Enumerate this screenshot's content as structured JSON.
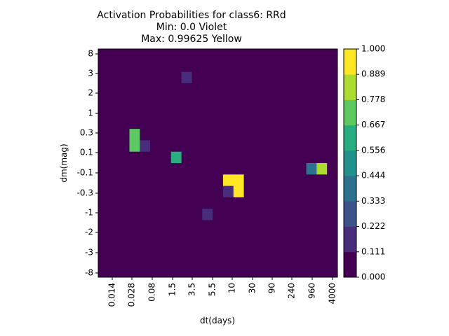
{
  "chart_data": {
    "type": "heatmap",
    "title_lines": [
      "Activation Probabilities for class6: RRd",
      "Min: 0.0 Violet",
      "Max: 0.99625 Yellow"
    ],
    "xlabel": "dt(days)",
    "ylabel": "dm(mag)",
    "x_tick_labels": [
      "0.014",
      "0.028",
      "0.08",
      "1.5",
      "3.5",
      "5.5",
      "10",
      "30",
      "90",
      "240",
      "960",
      "4000"
    ],
    "y_tick_labels": [
      "8",
      "3",
      "2",
      "1",
      "0.3",
      "0.1",
      "-0.1",
      "-0.3",
      "-1",
      "-2",
      "-3",
      "-8"
    ],
    "colorbar_ticks": [
      "1.000",
      "0.889",
      "0.778",
      "0.667",
      "0.556",
      "0.444",
      "0.333",
      "0.222",
      "0.111",
      "0.000"
    ],
    "colorbar_levels": 9,
    "vmin": 0.0,
    "vmax": 1.0,
    "colormap": [
      "#440154",
      "#472d7b",
      "#3b528b",
      "#2c728e",
      "#21918c",
      "#28ae80",
      "#5ec962",
      "#addc30",
      "#fde725"
    ],
    "grid": false,
    "values": [
      [
        0.0,
        0.0,
        0.0,
        0.0,
        0.05,
        0.05,
        0.0,
        0.0,
        0.0,
        0.0,
        0.0,
        0.01,
        0.0,
        0.0,
        0.0,
        0.0,
        0.0,
        0.0,
        0.0,
        0.0,
        0.0,
        0.0,
        0.0
      ],
      [
        0.0,
        0.04,
        0.0,
        0.0,
        0.07,
        0.07,
        0.0,
        0.0,
        0.0,
        0.0,
        0.0,
        0.0,
        0.0,
        0.0,
        0.0,
        0.0,
        0.0,
        0.0,
        0.0,
        0.0,
        0.01,
        0.0,
        0.02
      ],
      [
        0.0,
        0.0,
        0.0,
        0.0,
        0.0,
        0.0,
        0.0,
        0.0,
        0.15,
        0.0,
        0.0,
        0.0,
        0.0,
        0.0,
        0.0,
        0.0,
        0.0,
        0.0,
        0.0,
        0.0,
        0.0,
        0.0,
        0.0
      ],
      [
        0.0,
        0.0,
        0.0,
        0.0,
        0.0,
        0.0,
        0.0,
        0.0,
        0.0,
        0.0,
        0.0,
        0.0,
        0.0,
        0.0,
        0.0,
        0.0,
        0.0,
        0.0,
        0.0,
        0.0,
        0.0,
        0.0,
        0.0
      ],
      [
        0.0,
        0.0,
        0.0,
        0.0,
        0.0,
        0.0,
        0.0,
        0.0,
        0.0,
        0.0,
        0.0,
        0.0,
        0.0,
        0.0,
        0.0,
        0.0,
        0.0,
        0.0,
        0.0,
        0.0,
        0.0,
        0.0,
        0.0
      ],
      [
        0.0,
        0.0,
        0.0,
        0.0,
        0.0,
        0.0,
        0.0,
        0.0,
        0.0,
        0.0,
        0.0,
        0.0,
        0.0,
        0.0,
        0.0,
        0.0,
        0.0,
        0.0,
        0.0,
        0.0,
        0.0,
        0.0,
        0.0
      ],
      [
        0.0,
        0.0,
        0.0,
        0.0,
        0.0,
        0.0,
        0.0,
        0.0,
        0.0,
        0.0,
        0.0,
        0.0,
        0.0,
        0.0,
        0.0,
        0.0,
        0.0,
        0.0,
        0.0,
        0.0,
        0.0,
        0.0,
        0.02
      ],
      [
        0.0,
        0.0,
        0.0,
        0.72,
        0.0,
        0.0,
        0.03,
        0.0,
        0.0,
        0.0,
        0.0,
        0.0,
        0.0,
        0.0,
        0.0,
        0.0,
        0.0,
        0.0,
        0.0,
        0.0,
        0.0,
        0.0,
        0.0
      ],
      [
        0.0,
        0.0,
        0.0,
        0.73,
        0.12,
        0.0,
        0.0,
        0.0,
        0.0,
        0.0,
        0.0,
        0.0,
        0.0,
        0.0,
        0.0,
        0.0,
        0.0,
        0.0,
        0.0,
        0.0,
        0.0,
        0.0,
        0.0
      ],
      [
        0.0,
        0.0,
        0.0,
        0.0,
        0.0,
        0.0,
        0.0,
        0.6,
        0.0,
        0.0,
        0.0,
        0.0,
        0.0,
        0.0,
        0.0,
        0.0,
        0.0,
        0.0,
        0.0,
        0.0,
        0.0,
        0.0,
        0.0
      ],
      [
        0.0,
        0.0,
        0.0,
        0.0,
        0.0,
        0.0,
        0.0,
        0.0,
        0.0,
        0.0,
        0.0,
        0.0,
        0.0,
        0.0,
        0.0,
        0.0,
        0.0,
        0.0,
        0.0,
        0.0,
        0.38,
        0.8,
        0.02
      ],
      [
        0.0,
        0.0,
        0.0,
        0.0,
        0.0,
        0.0,
        0.0,
        0.0,
        0.0,
        0.0,
        0.0,
        0.02,
        0.99,
        0.99,
        0.0,
        0.0,
        0.0,
        0.0,
        0.0,
        0.0,
        0.02,
        0.06,
        0.0
      ],
      [
        0.0,
        0.0,
        0.0,
        0.0,
        0.0,
        0.0,
        0.0,
        0.0,
        0.0,
        0.0,
        0.0,
        0.0,
        0.18,
        0.99,
        0.0,
        0.0,
        0.0,
        0.0,
        0.0,
        0.0,
        0.0,
        0.0,
        0.0
      ],
      [
        0.0,
        0.0,
        0.0,
        0.0,
        0.0,
        0.0,
        0.0,
        0.0,
        0.0,
        0.0,
        0.0,
        0.0,
        0.05,
        0.0,
        0.0,
        0.0,
        0.0,
        0.0,
        0.0,
        0.0,
        0.0,
        0.0,
        0.0
      ],
      [
        0.0,
        0.0,
        0.0,
        0.0,
        0.0,
        0.0,
        0.0,
        0.0,
        0.0,
        0.04,
        0.13,
        0.0,
        0.0,
        0.0,
        0.0,
        0.0,
        0.0,
        0.0,
        0.0,
        0.0,
        0.0,
        0.0,
        0.0
      ],
      [
        0.0,
        0.0,
        0.0,
        0.0,
        0.0,
        0.0,
        0.0,
        0.0,
        0.03,
        0.06,
        0.0,
        0.0,
        0.0,
        0.0,
        0.0,
        0.0,
        0.0,
        0.0,
        0.0,
        0.0,
        0.0,
        0.0,
        0.0
      ],
      [
        0.0,
        0.0,
        0.0,
        0.0,
        0.0,
        0.0,
        0.0,
        0.0,
        0.03,
        0.04,
        0.0,
        0.0,
        0.0,
        0.0,
        0.0,
        0.0,
        0.0,
        0.0,
        0.0,
        0.0,
        0.0,
        0.0,
        0.0
      ],
      [
        0.0,
        0.0,
        0.0,
        0.0,
        0.0,
        0.0,
        0.0,
        0.0,
        0.03,
        0.02,
        0.0,
        0.0,
        0.0,
        0.0,
        0.0,
        0.0,
        0.04,
        0.03,
        0.0,
        0.0,
        0.0,
        0.0,
        0.0
      ],
      [
        0.0,
        0.0,
        0.0,
        0.0,
        0.0,
        0.0,
        0.0,
        0.0,
        0.07,
        0.0,
        0.0,
        0.06,
        0.0,
        0.0,
        0.0,
        0.0,
        0.0,
        0.0,
        0.0,
        0.0,
        0.0,
        0.0,
        0.0
      ],
      [
        0.02,
        0.02,
        0.02,
        0.02,
        0.02,
        0.02,
        0.02,
        0.02,
        0.02,
        0.02,
        0.02,
        0.02,
        0.02,
        0.02,
        0.02,
        0.02,
        0.02,
        0.02,
        0.02,
        0.02,
        0.02,
        0.02,
        0.02
      ]
    ]
  }
}
